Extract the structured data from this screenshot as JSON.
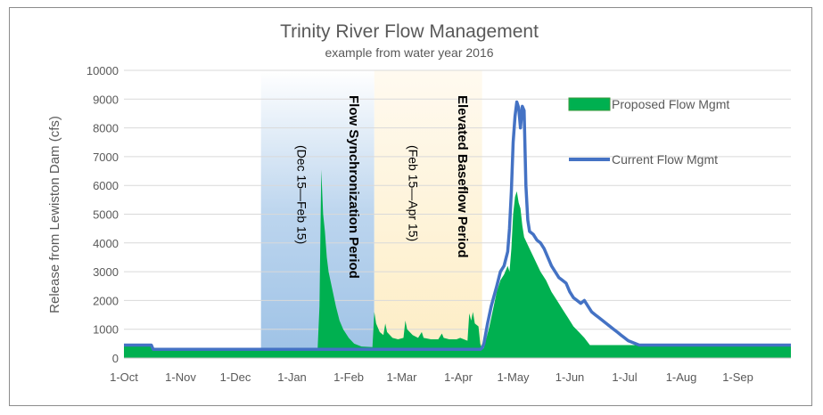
{
  "chart_data": {
    "type": "area",
    "title": "Trinity River Flow Management",
    "subtitle": "example from water year 2016",
    "xlabel": "",
    "ylabel": "Release from Lewiston Dam (cfs)",
    "ylim": [
      0,
      10000
    ],
    "yticks": [
      0,
      1000,
      2000,
      3000,
      4000,
      5000,
      6000,
      7000,
      8000,
      9000,
      10000
    ],
    "xlim_days": [
      0,
      365
    ],
    "xticks": [
      {
        "label": "1-Oct",
        "day": 0
      },
      {
        "label": "1-Nov",
        "day": 31
      },
      {
        "label": "1-Dec",
        "day": 61
      },
      {
        "label": "1-Jan",
        "day": 92
      },
      {
        "label": "1-Feb",
        "day": 123
      },
      {
        "label": "1-Mar",
        "day": 152
      },
      {
        "label": "1-Apr",
        "day": 183
      },
      {
        "label": "1-May",
        "day": 213
      },
      {
        "label": "1-Jun",
        "day": 244
      },
      {
        "label": "1-Jul",
        "day": 274
      },
      {
        "label": "1-Aug",
        "day": 305
      },
      {
        "label": "1-Sep",
        "day": 336
      }
    ],
    "periods": [
      {
        "name": "Flow Synchronization Period",
        "range": "(Dec 15—Feb 15)",
        "start_day": 75,
        "end_day": 137,
        "color": "#bcd5ee"
      },
      {
        "name": "Elevated Baseflow  Period",
        "range": "(Feb 15—Apr 15)",
        "start_day": 137,
        "end_day": 196,
        "color": "#fdedc4"
      }
    ],
    "series": [
      {
        "name": "Proposed Flow Mgmt",
        "style": "area",
        "color": "#00b050",
        "points": [
          [
            0,
            450
          ],
          [
            15,
            450
          ],
          [
            16,
            300
          ],
          [
            106,
            300
          ],
          [
            107,
            1800
          ],
          [
            108,
            6550
          ],
          [
            109,
            5000
          ],
          [
            110,
            4400
          ],
          [
            111,
            3500
          ],
          [
            112,
            3000
          ],
          [
            114,
            2400
          ],
          [
            116,
            1800
          ],
          [
            118,
            1300
          ],
          [
            120,
            1000
          ],
          [
            123,
            700
          ],
          [
            126,
            500
          ],
          [
            130,
            400
          ],
          [
            136,
            380
          ],
          [
            137,
            1600
          ],
          [
            138,
            1200
          ],
          [
            140,
            900
          ],
          [
            142,
            800
          ],
          [
            143,
            1200
          ],
          [
            144,
            900
          ],
          [
            147,
            700
          ],
          [
            150,
            650
          ],
          [
            153,
            700
          ],
          [
            154,
            1300
          ],
          [
            155,
            1000
          ],
          [
            158,
            800
          ],
          [
            161,
            700
          ],
          [
            163,
            900
          ],
          [
            164,
            700
          ],
          [
            168,
            650
          ],
          [
            172,
            650
          ],
          [
            174,
            850
          ],
          [
            175,
            700
          ],
          [
            178,
            650
          ],
          [
            182,
            650
          ],
          [
            184,
            700
          ],
          [
            186,
            650
          ],
          [
            188,
            600
          ],
          [
            189,
            1550
          ],
          [
            190,
            1300
          ],
          [
            191,
            1600
          ],
          [
            192,
            1200
          ],
          [
            194,
            1100
          ],
          [
            195,
            500
          ],
          [
            196,
            300
          ],
          [
            197,
            350
          ],
          [
            198,
            600
          ],
          [
            200,
            1100
          ],
          [
            202,
            1700
          ],
          [
            204,
            2300
          ],
          [
            206,
            2700
          ],
          [
            208,
            2900
          ],
          [
            210,
            3200
          ],
          [
            211,
            3000
          ],
          [
            212,
            3800
          ],
          [
            213,
            5000
          ],
          [
            214,
            5600
          ],
          [
            215,
            5800
          ],
          [
            216,
            5400
          ],
          [
            217,
            5200
          ],
          [
            218,
            4600
          ],
          [
            219,
            4200
          ],
          [
            222,
            3800
          ],
          [
            225,
            3400
          ],
          [
            228,
            3000
          ],
          [
            231,
            2700
          ],
          [
            234,
            2300
          ],
          [
            237,
            2000
          ],
          [
            240,
            1700
          ],
          [
            243,
            1400
          ],
          [
            246,
            1100
          ],
          [
            249,
            900
          ],
          [
            252,
            700
          ],
          [
            255,
            450
          ],
          [
            280,
            450
          ],
          [
            290,
            450
          ],
          [
            365,
            450
          ]
        ]
      },
      {
        "name": "Current Flow Mgmt",
        "style": "line",
        "color": "#4472c4",
        "points": [
          [
            0,
            450
          ],
          [
            15,
            450
          ],
          [
            16,
            300
          ],
          [
            195,
            300
          ],
          [
            196,
            350
          ],
          [
            197,
            500
          ],
          [
            199,
            1200
          ],
          [
            201,
            1800
          ],
          [
            204,
            2500
          ],
          [
            206,
            3000
          ],
          [
            208,
            3200
          ],
          [
            210,
            3700
          ],
          [
            211,
            4500
          ],
          [
            212,
            5800
          ],
          [
            213,
            7500
          ],
          [
            214,
            8400
          ],
          [
            215,
            8900
          ],
          [
            216,
            8700
          ],
          [
            217,
            8000
          ],
          [
            218,
            8750
          ],
          [
            219,
            8600
          ],
          [
            220,
            6000
          ],
          [
            221,
            4800
          ],
          [
            222,
            4400
          ],
          [
            224,
            4300
          ],
          [
            226,
            4100
          ],
          [
            228,
            4000
          ],
          [
            230,
            3800
          ],
          [
            232,
            3500
          ],
          [
            234,
            3200
          ],
          [
            236,
            3000
          ],
          [
            238,
            2800
          ],
          [
            240,
            2700
          ],
          [
            242,
            2600
          ],
          [
            244,
            2300
          ],
          [
            246,
            2100
          ],
          [
            248,
            2000
          ],
          [
            250,
            1900
          ],
          [
            252,
            2000
          ],
          [
            254,
            1800
          ],
          [
            256,
            1600
          ],
          [
            258,
            1500
          ],
          [
            260,
            1400
          ],
          [
            262,
            1300
          ],
          [
            264,
            1200
          ],
          [
            266,
            1100
          ],
          [
            268,
            1000
          ],
          [
            270,
            900
          ],
          [
            272,
            800
          ],
          [
            274,
            700
          ],
          [
            276,
            600
          ],
          [
            280,
            500
          ],
          [
            282,
            450
          ],
          [
            290,
            450
          ],
          [
            365,
            450
          ]
        ]
      }
    ]
  }
}
